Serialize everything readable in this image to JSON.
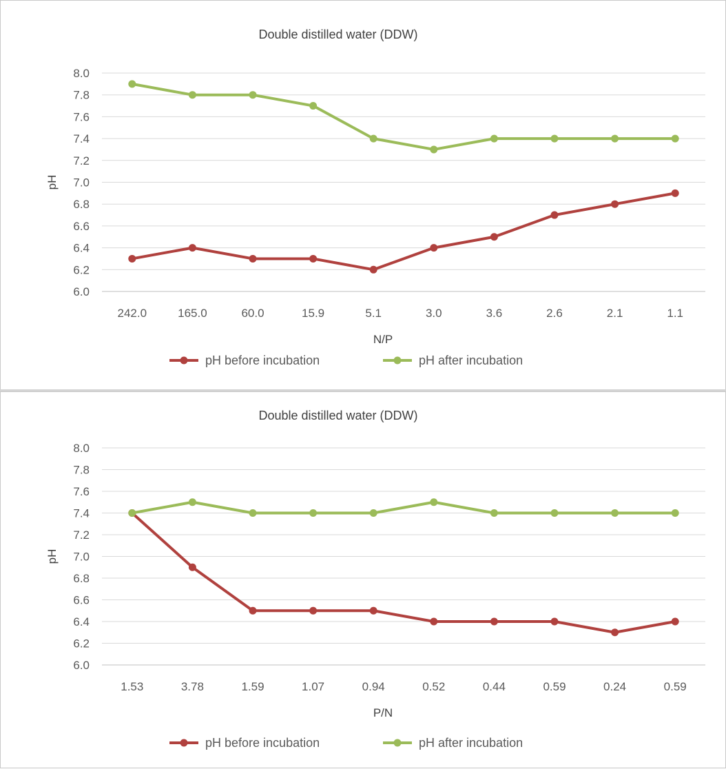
{
  "chart_data": [
    {
      "type": "line",
      "title": "Double distilled water (DDW)",
      "xlabel": "N/P",
      "ylabel": "pH",
      "categories": [
        "242.0",
        "165.0",
        "60.0",
        "15.9",
        "5.1",
        "3.0",
        "3.6",
        "2.6",
        "2.1",
        "1.1"
      ],
      "ylim": [
        6.0,
        8.0
      ],
      "yticks": [
        "6.0",
        "6.2",
        "6.4",
        "6.6",
        "6.8",
        "7.0",
        "7.2",
        "7.4",
        "7.6",
        "7.8",
        "8.0"
      ],
      "grid": true,
      "legend_position": "bottom",
      "series": [
        {
          "name": "pH before incubation",
          "color": "#b0413e",
          "values": [
            6.3,
            6.4,
            6.3,
            6.3,
            6.2,
            6.4,
            6.5,
            6.7,
            6.8,
            6.9
          ]
        },
        {
          "name": "pH after incubation",
          "color": "#9bbb59",
          "values": [
            7.9,
            7.8,
            7.8,
            7.7,
            7.4,
            7.3,
            7.4,
            7.4,
            7.4,
            7.4
          ]
        }
      ]
    },
    {
      "type": "line",
      "title": "Double distilled water (DDW)",
      "xlabel": "P/N",
      "ylabel": "pH",
      "categories": [
        "1.53",
        "3.78",
        "1.59",
        "1.07",
        "0.94",
        "0.52",
        "0.44",
        "0.59",
        "0.24",
        "0.59"
      ],
      "ylim": [
        6.0,
        8.0
      ],
      "yticks": [
        "6.0",
        "6.2",
        "6.4",
        "6.6",
        "6.8",
        "7.0",
        "7.2",
        "7.4",
        "7.6",
        "7.8",
        "8.0"
      ],
      "grid": true,
      "legend_position": "bottom",
      "series": [
        {
          "name": "pH before incubation",
          "color": "#b0413e",
          "values": [
            7.4,
            6.9,
            6.5,
            6.5,
            6.5,
            6.4,
            6.4,
            6.4,
            6.3,
            6.4
          ]
        },
        {
          "name": "pH after incubation",
          "color": "#9bbb59",
          "values": [
            7.4,
            7.5,
            7.4,
            7.4,
            7.4,
            7.5,
            7.4,
            7.4,
            7.4,
            7.4
          ]
        }
      ]
    }
  ]
}
